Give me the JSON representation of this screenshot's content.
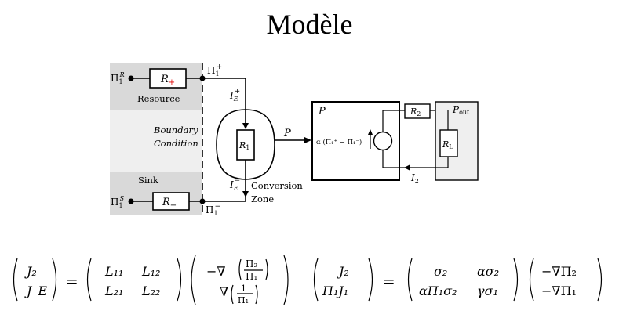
{
  "title": "Modèle",
  "diagram": {
    "resource_label": "Resource",
    "boundary_line1": "Boundary",
    "boundary_line2": "Condition",
    "sink_label": "Sink",
    "conversion_line1": "Conversion",
    "conversion_line2": "Zone",
    "resistors": {
      "r_plus_main": "R",
      "r_plus_sub": "+",
      "r_minus_main": "R",
      "r_minus_sub": "−",
      "r1_main": "R",
      "r1_sub": "1",
      "r2_main": "R",
      "r2_sub": "2",
      "rl_main": "R",
      "rl_sub": "L"
    },
    "symbols": {
      "pi": "Π",
      "pi_sub": "1",
      "sup_R": "R",
      "sup_S": "S",
      "sup_plus": "+",
      "sup_minus": "−",
      "I": "I",
      "E": "E",
      "P": "P",
      "P_out": "P",
      "out": "out",
      "I2_main": "I",
      "I2_sub": "2",
      "alpha_source": "α (Π₁⁺ − Π₁⁻)"
    }
  },
  "equations": {
    "eq1": {
      "lhs": [
        "J₂",
        "J_E"
      ],
      "matrix": [
        [
          "L₁₁",
          "L₁₂"
        ],
        [
          "L₂₁",
          "L₂₂"
        ]
      ],
      "rhs_top_prefix": "−∇",
      "rhs_top_frac_num": "Π₂",
      "rhs_top_frac_den": "Π₁",
      "rhs_bot_prefix": "∇",
      "rhs_bot_frac_num": "1",
      "rhs_bot_frac_den": "Π₁"
    },
    "eq2": {
      "lhs": [
        "J₂",
        "Π₁J₁"
      ],
      "matrix": [
        [
          "σ₂",
          "ασ₂"
        ],
        [
          "αΠ₁σ₂",
          "γσ₁"
        ]
      ],
      "rhs": [
        "−∇Π₂",
        "−∇Π₁"
      ]
    }
  },
  "colors": {
    "shade_dark": "#d9d9d9",
    "shade_light": "#efefef",
    "r_plus_red": "#e00000"
  }
}
